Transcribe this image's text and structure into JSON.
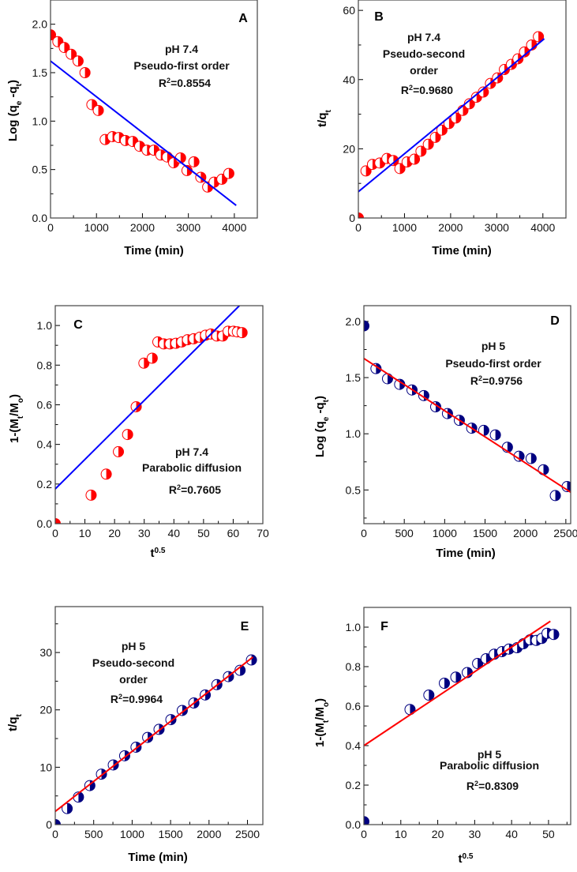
{
  "chart_data": [
    {
      "panel": "A",
      "type": "scatter",
      "xlabel": [
        {
          "t": "Time (min)"
        }
      ],
      "ylabel": [
        {
          "t": "Log (q"
        },
        {
          "t": "e",
          "s": "sub"
        },
        {
          "t": " -q"
        },
        {
          "t": "t",
          "s": "sub"
        },
        {
          "t": ")"
        }
      ],
      "xlim": [
        0,
        4500
      ],
      "ylim": [
        0,
        2.25
      ],
      "xticks": [
        0,
        1000,
        2000,
        3000,
        4000
      ],
      "yticks": [
        0.0,
        0.5,
        1.0,
        1.5,
        2.0
      ],
      "ytick_decimals": 1,
      "xminor": 500,
      "yminor": 0.25,
      "annotation": [
        "pH 7.4",
        "Pseudo-first order"
      ],
      "r2": "0.8554",
      "marker_color": "#ff0000",
      "line_color": "#0000ff",
      "x": [
        0,
        160,
        300,
        450,
        600,
        750,
        900,
        1040,
        1190,
        1350,
        1490,
        1630,
        1790,
        1940,
        2100,
        2250,
        2400,
        2540,
        2680,
        2830,
        2970,
        3120,
        3270,
        3420,
        3560,
        3730,
        3880
      ],
      "y": [
        1.89,
        1.82,
        1.76,
        1.69,
        1.62,
        1.5,
        1.17,
        1.11,
        0.81,
        0.84,
        0.83,
        0.8,
        0.79,
        0.74,
        0.7,
        0.7,
        0.65,
        0.63,
        0.57,
        0.62,
        0.49,
        0.58,
        0.42,
        0.32,
        0.37,
        0.4,
        0.46
      ],
      "fit": [
        [
          0,
          1.62
        ],
        [
          4040,
          0.13
        ]
      ]
    },
    {
      "panel": "B",
      "type": "scatter",
      "xlabel": [
        {
          "t": "Time (min)"
        }
      ],
      "ylabel": [
        {
          "t": "t/q"
        },
        {
          "t": "t",
          "s": "sub"
        }
      ],
      "xlim": [
        0,
        4500
      ],
      "ylim": [
        0,
        63
      ],
      "xticks": [
        0,
        1000,
        2000,
        3000,
        4000
      ],
      "yticks": [
        0,
        20,
        40,
        60
      ],
      "ytick_decimals": 0,
      "xminor": 500,
      "yminor": 10,
      "annotation": [
        "pH 7.4",
        "Pseudo-second",
        "order"
      ],
      "r2": "0.9680",
      "marker_color": "#ff0000",
      "line_color": "#0000ff",
      "x": [
        0,
        165,
        307,
        466,
        620,
        760,
        900,
        1057,
        1216,
        1358,
        1517,
        1670,
        1812,
        1966,
        2114,
        2267,
        2409,
        2562,
        2710,
        2864,
        3017,
        3165,
        3318,
        3460,
        3602,
        3756,
        3903
      ],
      "y": [
        0,
        13.6,
        15.5,
        15.9,
        17.2,
        16.6,
        14.3,
        16.2,
        17.0,
        19.3,
        21.3,
        23.3,
        25.4,
        27.3,
        28.9,
        31.1,
        33.0,
        34.9,
        36.4,
        38.9,
        40.5,
        42.9,
        44.4,
        46.0,
        48.0,
        50.0,
        52.4
      ],
      "fit": [
        [
          0,
          7.6
        ],
        [
          4030,
          51.8
        ]
      ]
    },
    {
      "panel": "C",
      "type": "scatter",
      "xlabel": [
        {
          "t": "t"
        },
        {
          "t": "0.5",
          "s": "sup"
        }
      ],
      "ylabel": [
        {
          "t": "1-(M"
        },
        {
          "t": "t",
          "s": "sub"
        },
        {
          "t": "/M"
        },
        {
          "t": "o",
          "s": "sub"
        },
        {
          "t": ")"
        }
      ],
      "xlim": [
        0,
        70
      ],
      "ylim": [
        0,
        1.1
      ],
      "xticks": [
        0,
        10,
        20,
        30,
        40,
        50,
        60,
        70
      ],
      "yticks": [
        0.0,
        0.2,
        0.4,
        0.6,
        0.8,
        1.0
      ],
      "ytick_decimals": 1,
      "xminor": 5,
      "yminor": 0.1,
      "annotation": [
        "pH 7.4",
        "Parabolic diffusion"
      ],
      "r2": "0.7605",
      "marker_color": "#ff0000",
      "line_color": "#0000ff",
      "x": [
        0,
        12.1,
        17.2,
        21.3,
        24.4,
        27.3,
        29.9,
        32.7,
        34.6,
        36.6,
        38.7,
        40.7,
        42.7,
        44.6,
        46.7,
        48.8,
        50.7,
        52.5,
        54.5,
        56.5,
        58.3,
        60.1,
        61.4,
        63.0
      ],
      "y": [
        0,
        0.144,
        0.25,
        0.363,
        0.45,
        0.59,
        0.81,
        0.835,
        0.917,
        0.907,
        0.907,
        0.91,
        0.917,
        0.928,
        0.933,
        0.941,
        0.951,
        0.957,
        0.947,
        0.947,
        0.971,
        0.971,
        0.968,
        0.964
      ],
      "fit": [
        [
          0,
          0.175
        ],
        [
          62.1,
          1.1
        ]
      ]
    },
    {
      "panel": "D",
      "type": "scatter",
      "xlabel": [
        {
          "t": "Time (min)"
        }
      ],
      "ylabel": [
        {
          "t": "Log (q"
        },
        {
          "t": "e",
          "s": "sub"
        },
        {
          "t": " -q"
        },
        {
          "t": "t",
          "s": "sub"
        },
        {
          "t": ")"
        }
      ],
      "xlim": [
        0,
        2560
      ],
      "ylim": [
        0.2,
        2.14
      ],
      "xticks": [
        0,
        500,
        1000,
        1500,
        2000,
        2500
      ],
      "yticks": [
        0.5,
        1.0,
        1.5,
        2.0
      ],
      "ytick_decimals": 1,
      "xminor": 250,
      "yminor": 0.25,
      "annotation": [
        "pH 5",
        "Pseudo-first order"
      ],
      "r2": "0.9756",
      "marker_color": "#000080",
      "line_color": "#ff0000",
      "x": [
        0,
        150,
        293,
        443,
        596,
        742,
        889,
        1035,
        1182,
        1335,
        1484,
        1628,
        1777,
        1921,
        2070,
        2223,
        2370,
        2516
      ],
      "y": [
        1.96,
        1.58,
        1.49,
        1.44,
        1.39,
        1.34,
        1.24,
        1.18,
        1.12,
        1.05,
        1.03,
        0.99,
        0.88,
        0.8,
        0.78,
        0.68,
        0.45,
        0.53
      ],
      "fit": [
        [
          0,
          1.67
        ],
        [
          2560,
          0.48
        ]
      ]
    },
    {
      "panel": "E",
      "type": "scatter",
      "xlabel": [
        {
          "t": "Time (min)"
        }
      ],
      "ylabel": [
        {
          "t": "t/q"
        },
        {
          "t": "t",
          "s": "sub"
        }
      ],
      "xlim": [
        0,
        2700
      ],
      "ylim": [
        0,
        38
      ],
      "xticks": [
        0,
        500,
        1000,
        1500,
        2000,
        2500
      ],
      "yticks": [
        0,
        10,
        20,
        30
      ],
      "ytick_decimals": 0,
      "xminor": 250,
      "yminor": 5,
      "annotation": [
        "pH 5",
        "Pseudo-second",
        "order"
      ],
      "r2": "0.9964",
      "marker_color": "#000080",
      "line_color": "#ff0000",
      "x": [
        0,
        155,
        302,
        450,
        601,
        755,
        903,
        1051,
        1202,
        1350,
        1504,
        1652,
        1803,
        1951,
        2102,
        2253,
        2404,
        2552
      ],
      "y": [
        0,
        2.8,
        4.8,
        6.8,
        8.8,
        10.4,
        12.0,
        13.5,
        15.2,
        16.6,
        18.3,
        19.9,
        21.2,
        22.6,
        24.4,
        25.8,
        26.9,
        28.7
      ],
      "fit": [
        [
          0,
          2.3
        ],
        [
          2570,
          29.2
        ]
      ]
    },
    {
      "panel": "F",
      "type": "scatter",
      "xlabel": [
        {
          "t": "t"
        },
        {
          "t": "0.5",
          "s": "sup"
        }
      ],
      "ylabel": [
        {
          "t": "1-(M"
        },
        {
          "t": "t",
          "s": "sub"
        },
        {
          "t": "/M"
        },
        {
          "t": "o",
          "s": "sub"
        },
        {
          "t": ")"
        }
      ],
      "xlim": [
        0,
        56
      ],
      "ylim": [
        0,
        1.1
      ],
      "xticks": [
        0,
        10,
        20,
        30,
        40,
        50
      ],
      "yticks": [
        0.0,
        0.2,
        0.4,
        0.6,
        0.8,
        1.0
      ],
      "ytick_decimals": 1,
      "xminor": 5,
      "yminor": 0.1,
      "annotation": [
        "pH 5",
        "Parabolic diffusion"
      ],
      "r2": "0.8309",
      "marker_color": "#000080",
      "line_color": "#ff0000",
      "x": [
        0,
        12.5,
        17.6,
        21.8,
        24.9,
        28.0,
        30.8,
        33.1,
        35.3,
        37.4,
        39.3,
        41.5,
        43.2,
        45.0,
        46.7,
        48.2,
        49.6,
        51.4
      ],
      "y": [
        0.015,
        0.583,
        0.656,
        0.716,
        0.747,
        0.77,
        0.816,
        0.84,
        0.863,
        0.876,
        0.889,
        0.896,
        0.916,
        0.936,
        0.933,
        0.943,
        0.969,
        0.963
      ],
      "fit": [
        [
          0,
          0.4
        ],
        [
          50.5,
          1.03
        ]
      ]
    }
  ]
}
